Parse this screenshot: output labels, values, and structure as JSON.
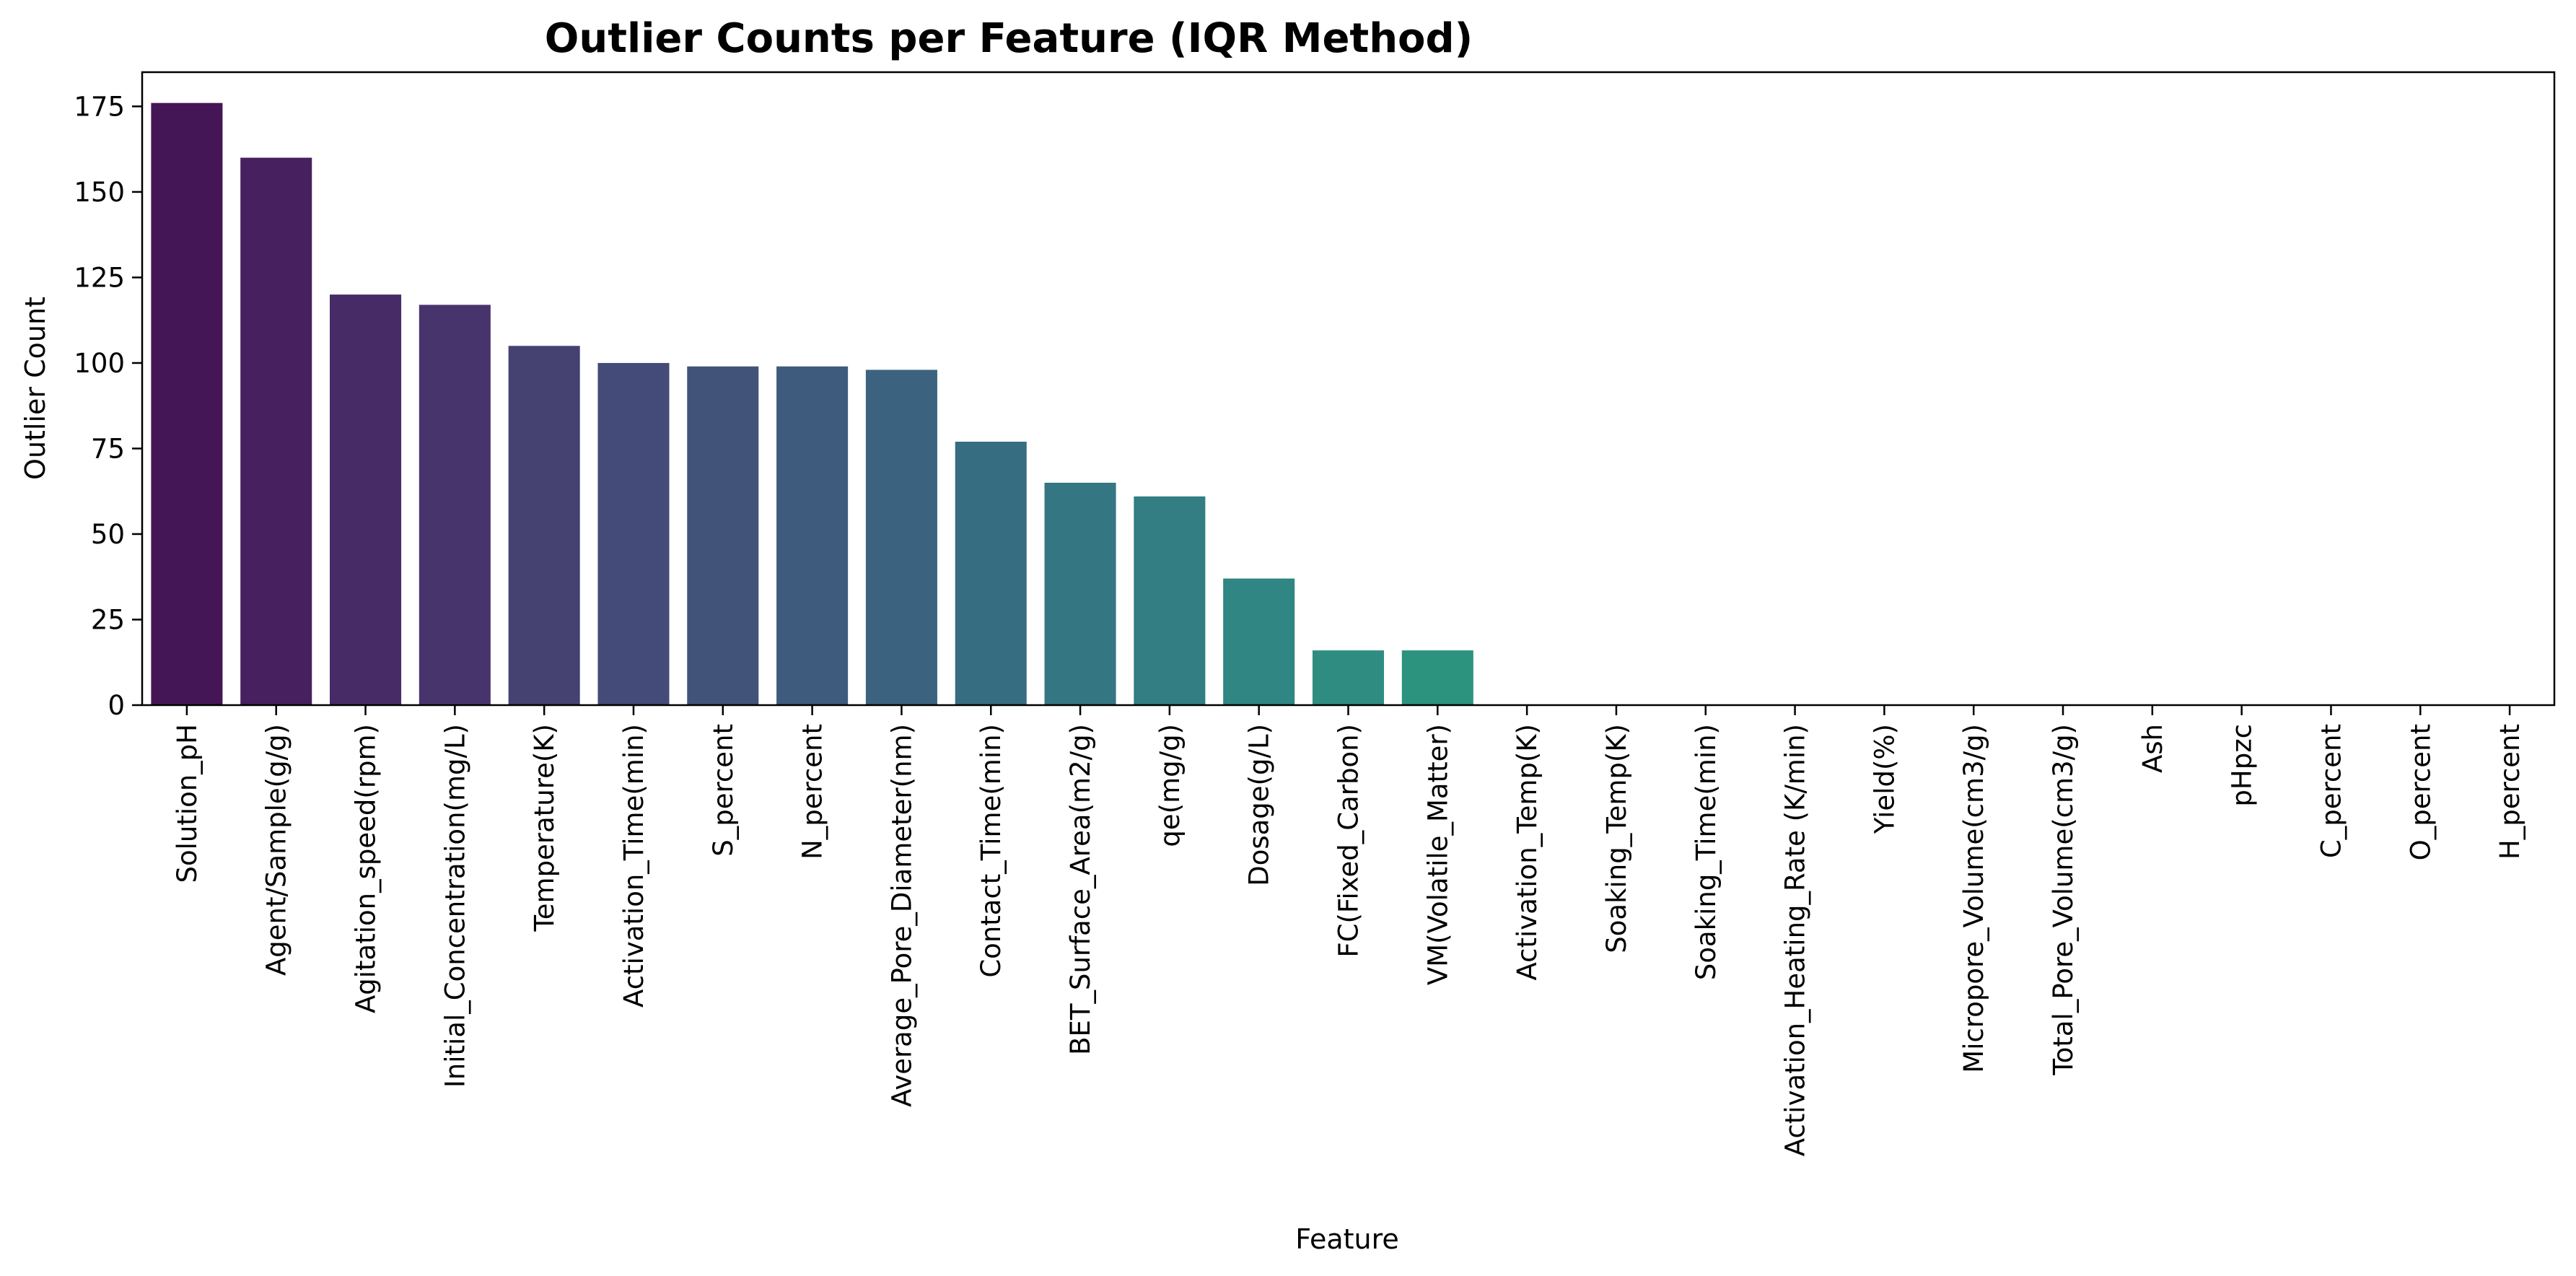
{
  "chart_data": {
    "type": "bar",
    "title": "Outlier Counts per Feature (IQR Method)",
    "xlabel": "Feature",
    "ylabel": "Outlier Count",
    "ylim": [
      0,
      185
    ],
    "yticks": [
      0,
      25,
      50,
      75,
      100,
      125,
      150,
      175
    ],
    "grid": false,
    "legend": "none",
    "categories": [
      "Solution_pH",
      "Agent/Sample(g/g)",
      "Agitation_speed(rpm)",
      "Initial_Concentration(mg/L)",
      "Temperature(K)",
      "Activation_Time(min)",
      "S_percent",
      "N_percent",
      "Average_Pore_Diameter(nm)",
      "Contact_Time(min)",
      "BET_Surface_Area(m2/g)",
      "qe(mg/g)",
      "Dosage(g/L)",
      "FC(Fixed_Carbon)",
      "VM(Volatile_Matter)",
      "Activation_Temp(K)",
      "Soaking_Temp(K)",
      "Soaking_Time(min)",
      "Activation_Heating_Rate (K/min)",
      "Yield(%)",
      "Micropore_Volume(cm3/g)",
      "Total_Pore_Volume(cm3/g)",
      "Ash",
      "pHpzc",
      "C_percent",
      "O_percent",
      "H_percent"
    ],
    "values": [
      176,
      160,
      120,
      117,
      105,
      100,
      99,
      99,
      98,
      77,
      65,
      61,
      37,
      16,
      16,
      0,
      0,
      0,
      0,
      0,
      0,
      0,
      0,
      0,
      0,
      0,
      0
    ],
    "colors": [
      "#451656",
      "#46205f",
      "#472b67",
      "#47346d",
      "#454272",
      "#444b78",
      "#425379",
      "#3e5b7e",
      "#3b637f",
      "#376d80",
      "#347682",
      "#327e82",
      "#2f8682",
      "#2e8d80",
      "#2b937e",
      "#29997c",
      "#2a9f7a",
      "#2ea677",
      "#35ad72",
      "#40b46c",
      "#4ebb65",
      "#5dc25d",
      "#6dc954",
      "#80cf4a",
      "#93d540",
      "#a8da36",
      "#bfdf2e"
    ]
  }
}
